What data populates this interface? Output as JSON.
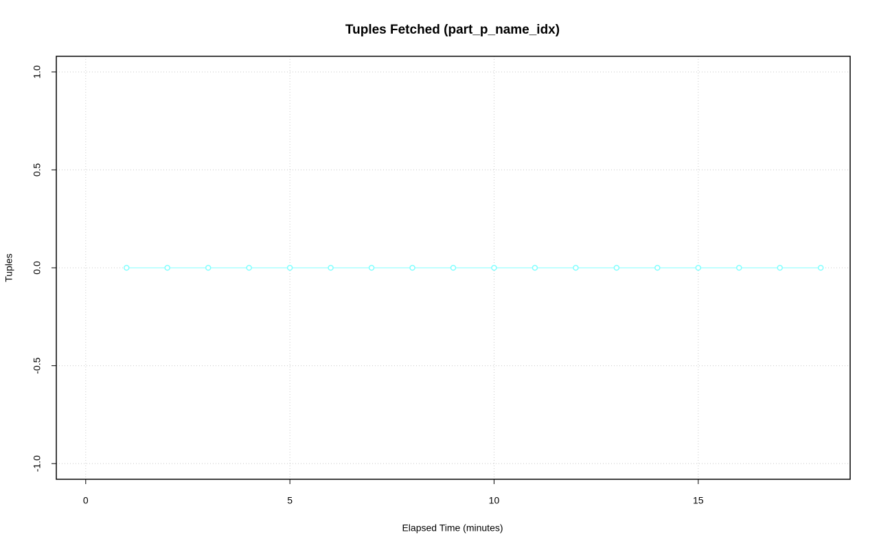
{
  "chart_data": {
    "type": "line",
    "title": "Tuples Fetched (part_p_name_idx)",
    "x_label": "Elapsed Time (minutes)",
    "y_label": "Tuples",
    "x": [
      1,
      2,
      3,
      4,
      5,
      6,
      7,
      8,
      9,
      10,
      11,
      12,
      13,
      14,
      15,
      16,
      17,
      18
    ],
    "series": [
      {
        "color": "#7fffff",
        "values": [
          0,
          0,
          0,
          0,
          0,
          0,
          0,
          0,
          0,
          0,
          0,
          0,
          0,
          0,
          0,
          0,
          0,
          0
        ]
      }
    ],
    "xlim": [
      -0.72,
      18.72
    ],
    "xticks": [
      0,
      5,
      10,
      15
    ],
    "ylim": [
      -1.08,
      1.08
    ],
    "yticks": [
      {
        "value": -1,
        "label": "-1.0"
      },
      -0.5,
      {
        "value": 0,
        "label": "0.0"
      },
      0.5,
      {
        "value": 1,
        "label": "1.0"
      }
    ],
    "grid": true
  }
}
